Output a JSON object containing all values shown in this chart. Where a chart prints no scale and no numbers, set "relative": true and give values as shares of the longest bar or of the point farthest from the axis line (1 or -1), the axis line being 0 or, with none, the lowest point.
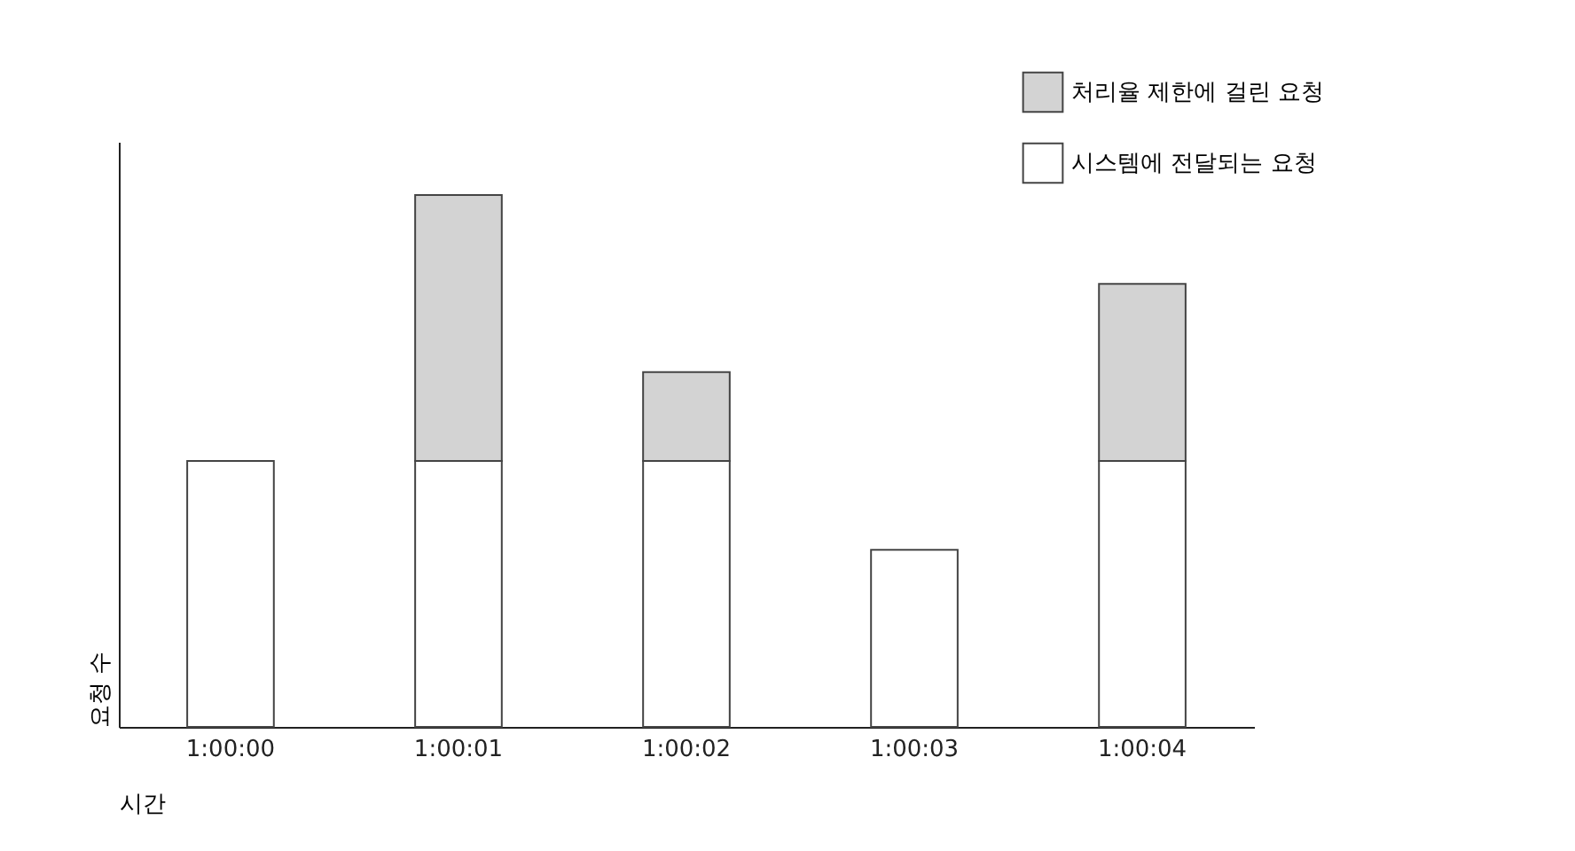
{
  "chart_data": {
    "type": "bar",
    "stacked": true,
    "relative": true,
    "xlabel": "시간",
    "ylabel": "요청 수",
    "categories": [
      "1:00:00",
      "1:00:01",
      "1:00:02",
      "1:00:03",
      "1:00:04"
    ],
    "series": [
      {
        "name": "시스템에 전달되는 요청",
        "color": "#ffffff",
        "values": [
          0.5,
          0.5,
          0.5,
          0.333,
          0.5
        ]
      },
      {
        "name": "처리율 제한에 걸린 요청",
        "color": "#d3d3d3",
        "values": [
          null,
          0.5,
          0.167,
          null,
          0.333
        ]
      }
    ],
    "legend": "top right",
    "grid": false
  }
}
